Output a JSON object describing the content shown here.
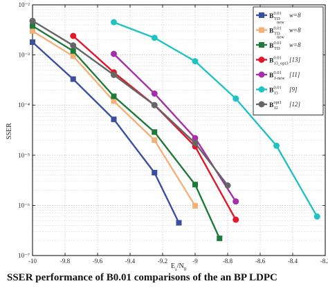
{
  "chart_data": {
    "type": "line",
    "ylabel": "SSER",
    "xlabel": "E_s/N_0",
    "xlim": [
      -10,
      -8.2
    ],
    "ylim_exp": [
      -7,
      -2
    ],
    "y_scale": "log",
    "grid": true,
    "legend_placement": "top-right",
    "x_ticks": [
      "-10",
      "-9.8",
      "-9.6",
      "-9.4",
      "-9.2",
      "-9",
      "-8.8",
      "-8.6",
      "-8.4",
      "-8.2"
    ],
    "y_ticks": [
      "10⁻⁷",
      "10⁻⁶",
      "10⁻⁵",
      "10⁻⁴",
      "10⁻³",
      "10⁻²"
    ],
    "series": [
      {
        "name": "B",
        "sup": "0.01",
        "sub": "TD",
        "subsub": "new",
        "note": "w=8",
        "color": "#3a4fa0",
        "marker": "square",
        "x": [
          -10,
          -9.75,
          -9.5,
          -9.25,
          -9.1
        ],
        "y": [
          0.0018,
          0.00033,
          5.2e-05,
          4.5e-06,
          4.5e-07
        ]
      },
      {
        "name": "B",
        "sup": "0.01",
        "sub": "TD",
        "subsub": "new",
        "note": "w=8",
        "color": "#f5b07a",
        "marker": "square",
        "x": [
          -10,
          -9.75,
          -9.5,
          -9.25,
          -9.0
        ],
        "y": [
          0.003,
          0.00095,
          0.00012,
          2e-05,
          9.8e-07
        ]
      },
      {
        "name": "B",
        "sup": "0.01",
        "sub": "TD",
        "subsub": "",
        "note": "w=8",
        "color": "#1f7a3a",
        "marker": "square",
        "x": [
          -10,
          -9.75,
          -9.5,
          -9.25,
          -9.0,
          -8.85
        ],
        "y": [
          0.0038,
          0.0012,
          0.00015,
          2.9e-05,
          2.6e-06,
          2.2e-07
        ]
      },
      {
        "name": "B",
        "sup": "0.01",
        "sub": "J3_opt3",
        "subsub": "",
        "note": "[13]",
        "color": "#e0182a",
        "marker": "circle",
        "x": [
          -9.75,
          -9.5,
          -9.25,
          -9.0,
          -8.75
        ],
        "y": [
          0.0024,
          0.00045,
          0.0001,
          1.5e-05,
          5.2e-07
        ]
      },
      {
        "name": "B",
        "sup": "0.01",
        "sub": "J-new",
        "subsub": "",
        "note": "[11]",
        "color": "#a52fa8",
        "marker": "circle",
        "x": [
          -9.5,
          -9.25,
          -9.0,
          -8.75
        ],
        "y": [
          0.00105,
          0.00017,
          2.2e-05,
          1.2e-06
        ]
      },
      {
        "name": "B",
        "sup": "0.01",
        "sub": "J3",
        "subsub": "",
        "note": "[9]",
        "color": "#22c2c2",
        "marker": "circle",
        "x": [
          -9.5,
          -9.25,
          -9.0,
          -8.75,
          -8.5,
          -8.25
        ],
        "y": [
          0.0045,
          0.0022,
          0.00075,
          0.000135,
          1.55e-05,
          6e-07
        ]
      },
      {
        "name": "B",
        "sup": "opt1",
        "sub": "J2",
        "subsub": "",
        "note": "[12]",
        "color": "#666666",
        "marker": "circle",
        "x": [
          -10,
          -9.75,
          -9.5,
          -9.25,
          -9.0,
          -8.8
        ],
        "y": [
          0.0048,
          0.00155,
          0.0004,
          0.0001,
          1.75e-05,
          2.5e-06
        ]
      }
    ]
  },
  "caption": "SSER performance of B0.01 comparisons of the an BP LDPC"
}
